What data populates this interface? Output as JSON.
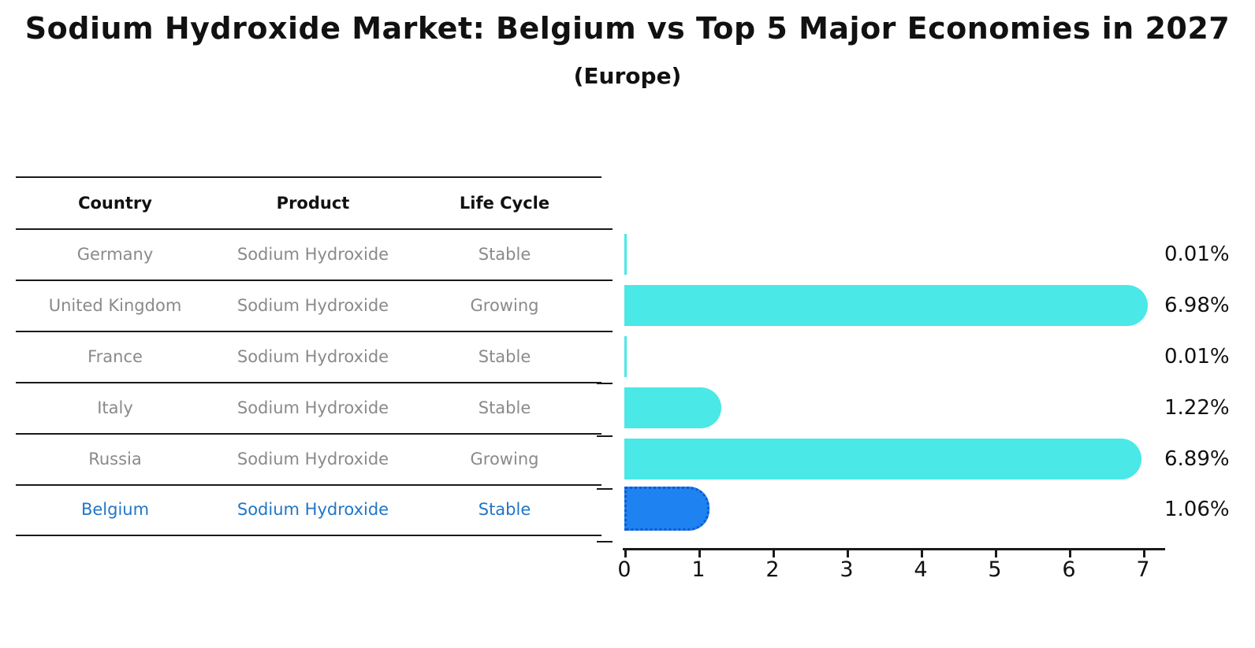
{
  "title": "Sodium Hydroxide Market: Belgium vs Top 5 Major Economies in 2027",
  "subtitle": "(Europe)",
  "table": {
    "headers": [
      "Country",
      "Product",
      "Life Cycle"
    ],
    "rows": [
      {
        "country": "Germany",
        "product": "Sodium Hydroxide",
        "life_cycle": "Stable",
        "highlight": false
      },
      {
        "country": "United Kingdom",
        "product": "Sodium Hydroxide",
        "life_cycle": "Growing",
        "highlight": false
      },
      {
        "country": "France",
        "product": "Sodium Hydroxide",
        "life_cycle": "Stable",
        "highlight": false
      },
      {
        "country": "Italy",
        "product": "Sodium Hydroxide",
        "life_cycle": "Stable",
        "highlight": false
      },
      {
        "country": "Russia",
        "product": "Sodium Hydroxide",
        "life_cycle": "Growing",
        "highlight": false
      },
      {
        "country": "Belgium",
        "product": "Sodium Hydroxide",
        "life_cycle": "Stable",
        "highlight": true
      }
    ]
  },
  "chart_data": {
    "type": "bar",
    "orientation": "horizontal",
    "categories": [
      "Germany",
      "United Kingdom",
      "France",
      "Italy",
      "Russia",
      "Belgium"
    ],
    "values": [
      0.01,
      6.98,
      0.01,
      1.22,
      6.89,
      1.06
    ],
    "value_labels": [
      "0.01%",
      "6.98%",
      "0.01%",
      "1.22%",
      "6.89%",
      "1.06%"
    ],
    "title": "Sodium Hydroxide Market: Belgium vs Top 5 Major Economies in 2027",
    "subtitle": "(Europe)",
    "xlabel": "",
    "ylabel": "",
    "xlim": [
      0,
      7.4
    ],
    "xticks": [
      "0",
      "1",
      "2",
      "3",
      "4",
      "5",
      "6",
      "7"
    ],
    "grid": false,
    "legend": false,
    "bar_color": "#4AE8E6",
    "highlight_index": 5,
    "highlight_color": "#1E82F0",
    "highlight_border_color": "#0B5BD3",
    "highlight_text_color": "#2176c7"
  }
}
